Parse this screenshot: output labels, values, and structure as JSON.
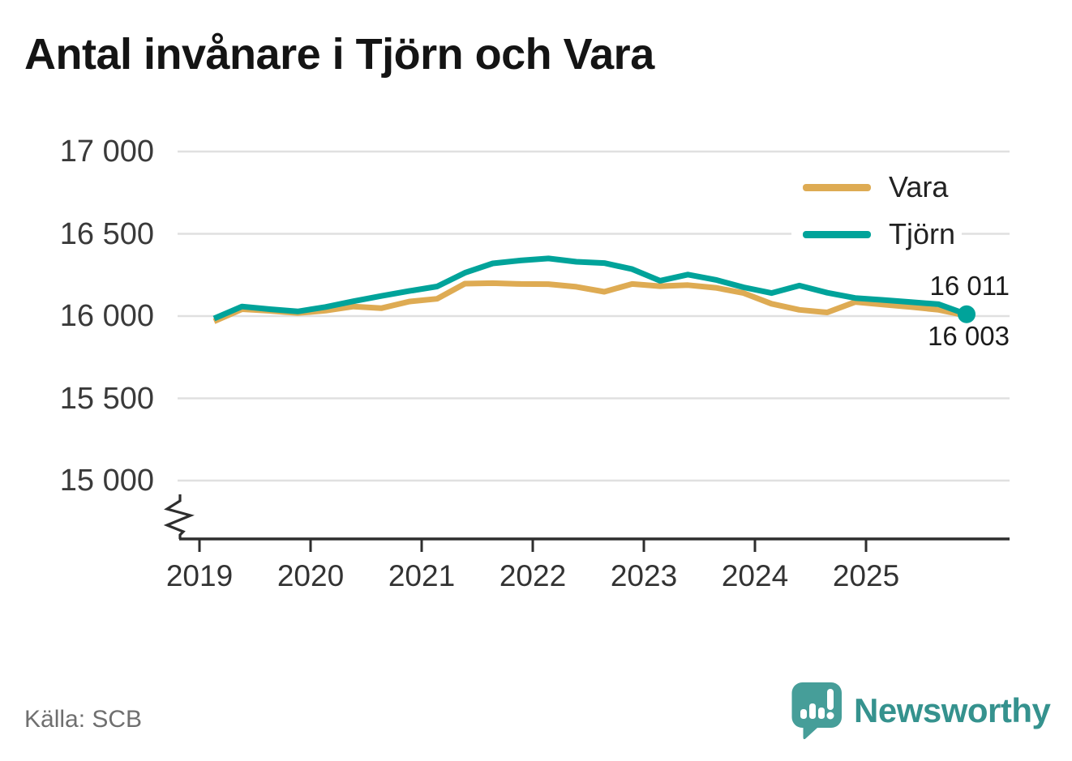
{
  "title": "Antal invånare i Tjörn och Vara",
  "source": "Källa: SCB",
  "logo": {
    "text": "Newsworthy"
  },
  "legend": [
    {
      "label": "Vara",
      "color": "#DEAB53"
    },
    {
      "label": "Tjörn",
      "color": "#00A39A"
    }
  ],
  "end_labels": {
    "tjorn": "16 011",
    "vara": "16 003"
  },
  "colors": {
    "vara": "#DEAB53",
    "tjorn": "#00A39A",
    "grid": "#e0e0e0",
    "axis": "#2e2e2e",
    "tick_text": "#3a3a3a",
    "logo_teal": "#35928e",
    "source_text": "#6f6f6f"
  },
  "chart_data": {
    "type": "line",
    "title": "Antal invånare i Tjörn och Vara",
    "ylabel": "",
    "xlabel": "",
    "grid": "horizontal",
    "legend_position": "top-right",
    "y_axis_break": true,
    "ylim": [
      14800,
      17000
    ],
    "y_ticks": [
      "17 000",
      "16 500",
      "16 000",
      "15 500",
      "15 000"
    ],
    "y_tick_values": [
      17000,
      16500,
      16000,
      15500,
      15000
    ],
    "x_ticks": [
      "2019",
      "2020",
      "2021",
      "2022",
      "2023",
      "2024",
      "2025"
    ],
    "x": [
      "2019 Q1",
      "2019 Q2",
      "2019 Q3",
      "2019 Q4",
      "2020 Q1",
      "2020 Q2",
      "2020 Q3",
      "2020 Q4",
      "2021 Q1",
      "2021 Q2",
      "2021 Q3",
      "2021 Q4",
      "2022 Q1",
      "2022 Q2",
      "2022 Q3",
      "2022 Q4",
      "2023 Q1",
      "2023 Q2",
      "2023 Q3",
      "2023 Q4",
      "2024 Q1",
      "2024 Q2",
      "2024 Q3",
      "2024 Q4",
      "2025 Q1",
      "2025 Q2",
      "2025 Q3",
      "2025 Q4"
    ],
    "series": [
      {
        "name": "Vara",
        "color": "#DEAB53",
        "end_label": "16 003",
        "values": [
          15968,
          16042,
          16032,
          16018,
          16033,
          16058,
          16048,
          16088,
          16105,
          16197,
          16200,
          16195,
          16194,
          16178,
          16148,
          16195,
          16182,
          16188,
          16172,
          16140,
          16075,
          16038,
          16022,
          16085,
          16070,
          16055,
          16038,
          16003
        ]
      },
      {
        "name": "Tjörn",
        "color": "#00A39A",
        "end_label": "16 011",
        "values": [
          15985,
          16058,
          16042,
          16028,
          16055,
          16090,
          16122,
          16152,
          16180,
          16263,
          16320,
          16338,
          16350,
          16330,
          16322,
          16285,
          16215,
          16252,
          16220,
          16175,
          16140,
          16185,
          16142,
          16110,
          16098,
          16085,
          16072,
          16011
        ]
      }
    ]
  }
}
